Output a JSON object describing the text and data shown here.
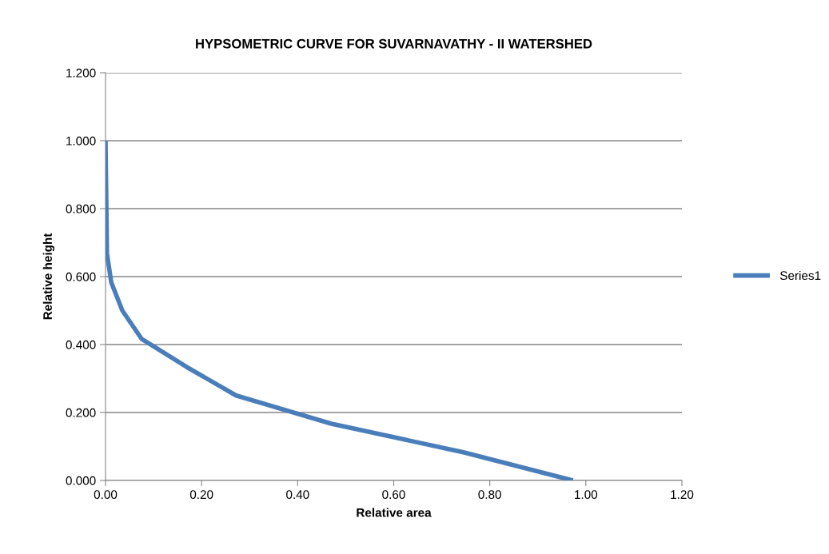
{
  "chart_data": {
    "type": "line",
    "title": "HYPSOMETRIC CURVE FOR SUVARNAVATHY - II WATERSHED",
    "xlabel": "Relative area",
    "ylabel": "Relative height",
    "series": [
      {
        "name": "Series1",
        "color": "#4a7ebb",
        "x": [
          0,
          0.003,
          0.012,
          0.035,
          0.075,
          0.17,
          0.272,
          0.47,
          0.745,
          0.973
        ],
        "values": [
          1.0,
          0.667,
          0.583,
          0.5,
          0.417,
          0.333,
          0.25,
          0.167,
          0.083,
          0
        ]
      }
    ],
    "xlim": [
      0,
      1.2
    ],
    "xticks": [
      {
        "value": 0,
        "label": "0.00"
      },
      {
        "value": 0.2,
        "label": "0.20"
      },
      {
        "value": 0.4,
        "label": "0.40"
      },
      {
        "value": 0.6,
        "label": "0.60"
      },
      {
        "value": 0.8,
        "label": "0.80"
      },
      {
        "value": 1.0,
        "label": "1.00"
      },
      {
        "value": 1.2,
        "label": "1.20"
      }
    ],
    "ylim": [
      0,
      1.2
    ],
    "yticks": [
      {
        "value": 0,
        "label": "0.000"
      },
      {
        "value": 0.2,
        "label": "0.200"
      },
      {
        "value": 0.4,
        "label": "0.400"
      },
      {
        "value": 0.6,
        "label": "0.600"
      },
      {
        "value": 0.8,
        "label": "0.800"
      },
      {
        "value": 1.0,
        "label": "1.000"
      },
      {
        "value": 1.2,
        "label": "1.200"
      }
    ],
    "grid": "y",
    "legend": "right",
    "marker": "none",
    "line_style": "solid"
  }
}
